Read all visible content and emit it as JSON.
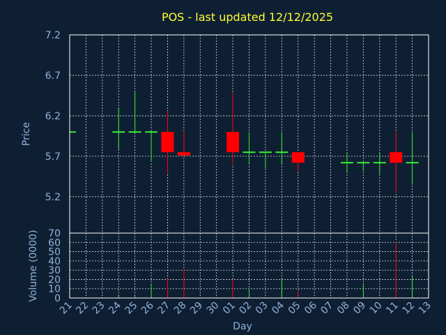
{
  "chart_data": {
    "type": "candlestick",
    "title": "POS - last updated 12/12/2025",
    "xlabel": "Day",
    "price_panel": {
      "ylabel": "Price",
      "ylim": [
        4.75,
        7.2
      ],
      "yticks": [
        "7.2",
        "6.7",
        "6.2",
        "5.7",
        "5.2"
      ],
      "grid": true
    },
    "volume_panel": {
      "ylabel": "Volume (0000)",
      "ylim": [
        0,
        70
      ],
      "yticks": [
        "70",
        "60",
        "50",
        "40",
        "30",
        "20",
        "10",
        "0"
      ],
      "grid": true
    },
    "x_ticks": [
      "21",
      "22",
      "23",
      "24",
      "25",
      "26",
      "27",
      "28",
      "29",
      "30",
      "01",
      "02",
      "03",
      "04",
      "05",
      "06",
      "07",
      "08",
      "09",
      "10",
      "11",
      "12",
      "13"
    ],
    "candles": [
      {
        "day": "21",
        "open": 6.0,
        "high": 6.0,
        "low": 6.0,
        "close": 6.0,
        "volume": 0
      },
      {
        "day": "24",
        "open": 6.0,
        "high": 6.3,
        "low": 5.78,
        "close": 6.0,
        "volume": 3
      },
      {
        "day": "25",
        "open": 6.0,
        "high": 6.49,
        "low": 6.0,
        "close": 6.0,
        "volume": 2
      },
      {
        "day": "26",
        "open": 6.0,
        "high": 6.0,
        "low": 5.63,
        "close": 6.0,
        "volume": 16
      },
      {
        "day": "27",
        "open": 6.0,
        "high": 6.26,
        "low": 5.48,
        "close": 5.75,
        "volume": 21
      },
      {
        "day": "28",
        "open": 5.75,
        "high": 6.0,
        "low": 5.71,
        "close": 5.71,
        "volume": 31
      },
      {
        "day": "01",
        "open": 6.0,
        "high": 6.49,
        "low": 5.6,
        "close": 5.75,
        "volume": 20
      },
      {
        "day": "02",
        "open": 5.75,
        "high": 6.0,
        "low": 5.6,
        "close": 5.75,
        "volume": 10
      },
      {
        "day": "03",
        "open": 5.75,
        "high": 5.75,
        "low": 5.55,
        "close": 5.75,
        "volume": 0
      },
      {
        "day": "04",
        "open": 5.75,
        "high": 6.0,
        "low": 5.6,
        "close": 5.75,
        "volume": 20
      },
      {
        "day": "05",
        "open": 5.75,
        "high": 5.75,
        "low": 5.52,
        "close": 5.62,
        "volume": 7
      },
      {
        "day": "08",
        "open": 5.62,
        "high": 5.73,
        "low": 5.5,
        "close": 5.62,
        "volume": 0
      },
      {
        "day": "09",
        "open": 5.62,
        "high": 5.62,
        "low": 5.52,
        "close": 5.62,
        "volume": 14
      },
      {
        "day": "10",
        "open": 5.62,
        "high": 5.75,
        "low": 5.48,
        "close": 5.62,
        "volume": 0
      },
      {
        "day": "11",
        "open": 5.75,
        "high": 6.0,
        "low": 5.25,
        "close": 5.62,
        "volume": 61
      },
      {
        "day": "12",
        "open": 5.62,
        "high": 6.0,
        "low": 5.35,
        "close": 5.62,
        "volume": 25
      }
    ],
    "colors": {
      "background": "#0f1f33",
      "up": "#33ee33",
      "down": "#ff0000",
      "grid": "#ffffff",
      "title": "#ffff33",
      "label": "#8fb3d9"
    }
  }
}
